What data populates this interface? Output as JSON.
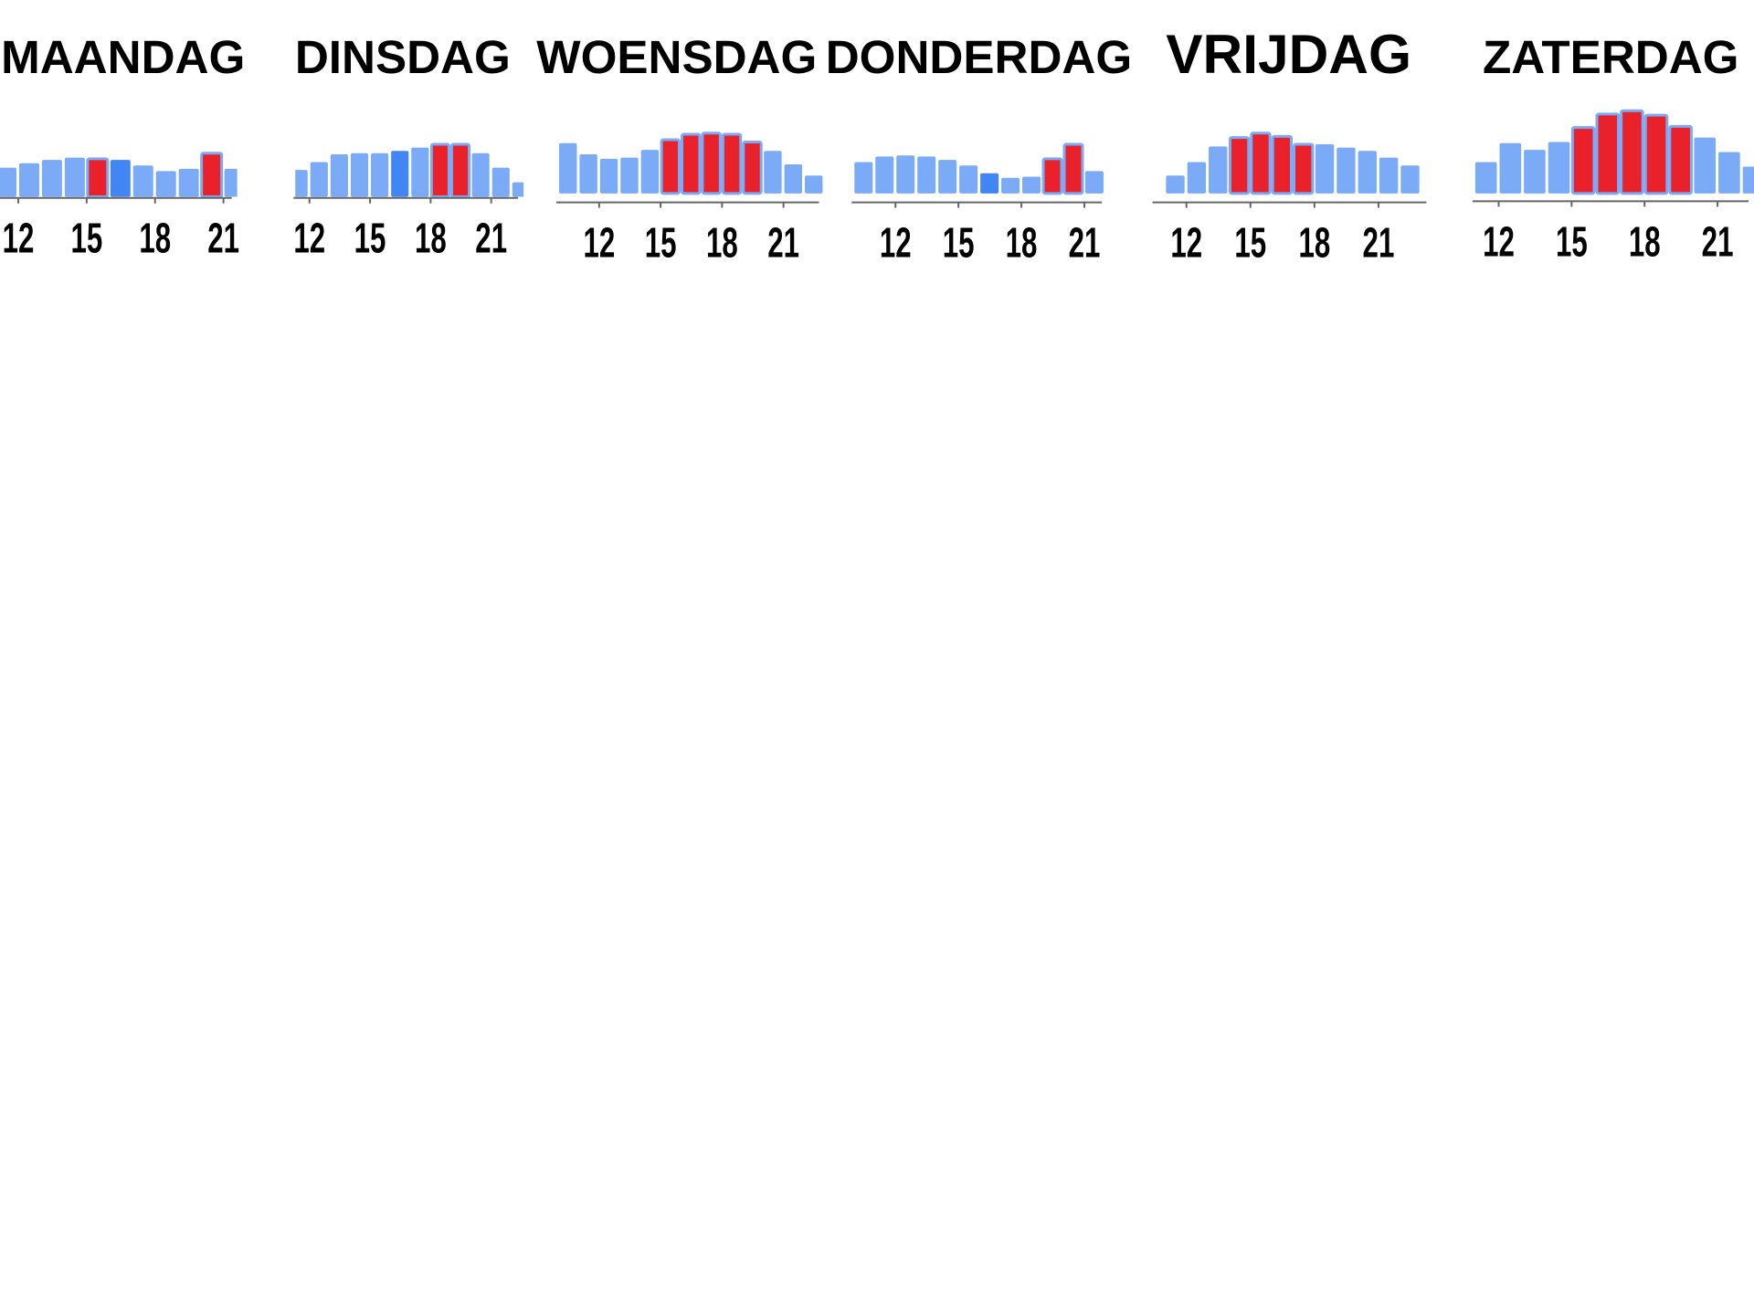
{
  "chart_data": [
    {
      "type": "bar",
      "title": "MAANDAG",
      "x": [
        11,
        12,
        13,
        14,
        15,
        16,
        17,
        18,
        19,
        20,
        21
      ],
      "values": [
        26,
        30,
        33,
        35,
        34,
        33,
        28,
        23,
        25,
        39,
        25
      ],
      "colors": [
        "#7baaf7",
        "#7baaf7",
        "#7baaf7",
        "#7baaf7",
        "#e8212b",
        "#4285f4",
        "#7baaf7",
        "#7baaf7",
        "#7baaf7",
        "#e8212b",
        "#7baaf7"
      ],
      "xlim": [
        11.2,
        21.6
      ],
      "xticks": [
        12,
        15,
        18,
        21
      ]
    },
    {
      "type": "bar",
      "title": "DINSDAG",
      "x": [
        11,
        12,
        13,
        14,
        15,
        16,
        17,
        18,
        19,
        20,
        21,
        22
      ],
      "values": [
        24,
        31,
        38,
        39,
        39,
        41,
        44,
        47,
        47,
        39,
        26,
        13
      ],
      "colors": [
        "#7baaf7",
        "#7baaf7",
        "#7baaf7",
        "#7baaf7",
        "#7baaf7",
        "#4285f4",
        "#7baaf7",
        "#e8212b",
        "#e8212b",
        "#7baaf7",
        "#7baaf7",
        "#7baaf7"
      ],
      "xlim": [
        11.3,
        22.6
      ],
      "xticks": [
        12,
        15,
        18,
        21
      ]
    },
    {
      "type": "bar",
      "title": "WOENSDAG",
      "x": [
        10,
        11,
        12,
        13,
        14,
        15,
        16,
        17,
        18,
        19,
        20,
        21,
        22
      ],
      "values": [
        45,
        35,
        31,
        32,
        39,
        48,
        53,
        54,
        53,
        46,
        38,
        26,
        16
      ],
      "colors": [
        "#7baaf7",
        "#7baaf7",
        "#7baaf7",
        "#7baaf7",
        "#7baaf7",
        "#e8212b",
        "#e8212b",
        "#e8212b",
        "#e8212b",
        "#e8212b",
        "#7baaf7",
        "#7baaf7",
        "#7baaf7"
      ],
      "xlim": [
        10,
        23
      ],
      "xticks": [
        12,
        15,
        18,
        21
      ]
    },
    {
      "type": "bar",
      "title": "DONDERDAG",
      "x": [
        10,
        11,
        12,
        13,
        14,
        15,
        16,
        17,
        18,
        19,
        20,
        21
      ],
      "values": [
        28,
        33,
        34,
        33,
        30,
        25,
        18,
        14,
        15,
        31,
        44,
        20
      ],
      "colors": [
        "#7baaf7",
        "#7baaf7",
        "#7baaf7",
        "#7baaf7",
        "#7baaf7",
        "#7baaf7",
        "#4285f4",
        "#7baaf7",
        "#7baaf7",
        "#e8212b",
        "#e8212b",
        "#7baaf7"
      ],
      "xlim": [
        10,
        22.1
      ],
      "xticks": [
        12,
        15,
        18,
        21
      ]
    },
    {
      "type": "bar",
      "title": "VRIJDAG",
      "x": [
        11,
        12,
        13,
        14,
        15,
        16,
        17,
        18,
        19,
        20,
        21,
        22
      ],
      "values": [
        16,
        28,
        42,
        50,
        54,
        51,
        44,
        44,
        41,
        38,
        32,
        25
      ],
      "colors": [
        "#7baaf7",
        "#7baaf7",
        "#7baaf7",
        "#e8212b",
        "#e8212b",
        "#e8212b",
        "#e8212b",
        "#7baaf7",
        "#7baaf7",
        "#7baaf7",
        "#7baaf7",
        "#7baaf7"
      ],
      "xlim": [
        10.5,
        23.5
      ],
      "xticks": [
        12,
        15,
        18,
        21
      ]
    },
    {
      "type": "bar",
      "title": "ZATERDAG",
      "x": [
        11,
        12,
        13,
        14,
        15,
        16,
        17,
        18,
        19,
        20,
        21,
        22
      ],
      "values": [
        28,
        45,
        39,
        46,
        59,
        71,
        74,
        70,
        60,
        50,
        37,
        24
      ],
      "colors": [
        "#7baaf7",
        "#7baaf7",
        "#7baaf7",
        "#7baaf7",
        "#e8212b",
        "#e8212b",
        "#e8212b",
        "#e8212b",
        "#e8212b",
        "#7baaf7",
        "#7baaf7",
        "#7baaf7"
      ],
      "xlim": [
        11,
        22.5
      ],
      "xticks": [
        12,
        15,
        18,
        21
      ]
    }
  ]
}
